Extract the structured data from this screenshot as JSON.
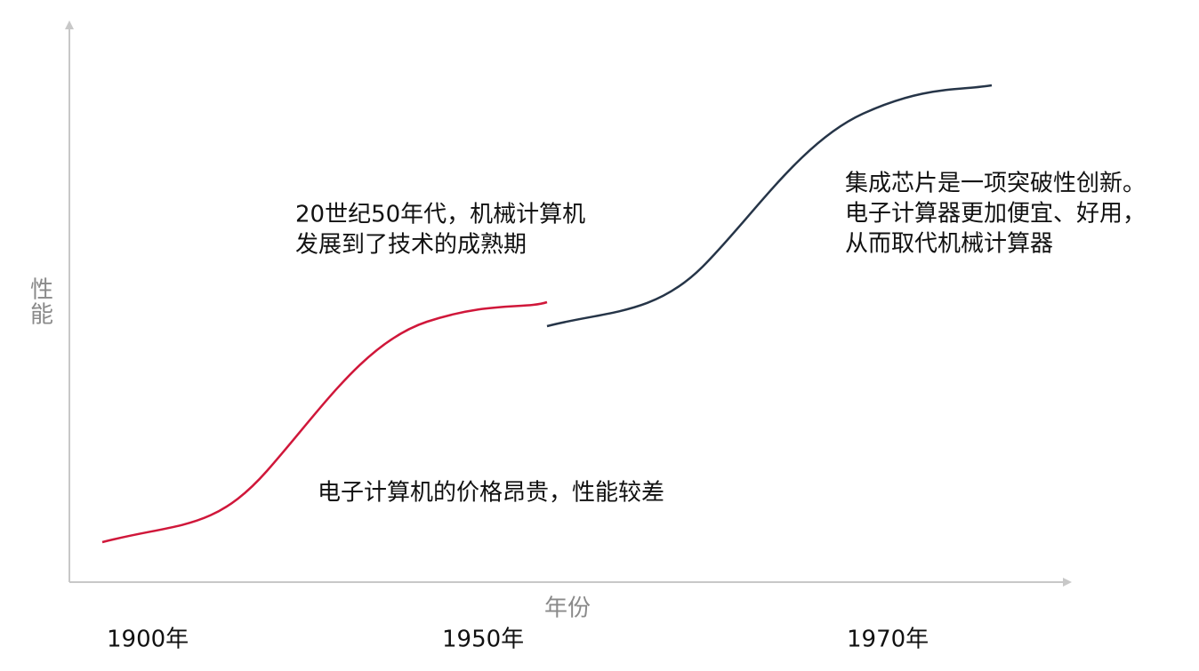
{
  "axis_labels": {
    "y": [
      "性",
      "能"
    ],
    "x": "年份"
  },
  "x_ticks": [
    "1900年",
    "1950年",
    "1970年"
  ],
  "annotations": [
    [
      "20世纪50年代，机械计算机",
      "发展到了技术的成熟期"
    ],
    [
      "电子计算机的价格昂贵，性能较差"
    ],
    [
      "集成芯片是一项突破性创新。",
      "电子计算器更加便宜、好用，",
      "从而取代机械计算器"
    ]
  ]
}
